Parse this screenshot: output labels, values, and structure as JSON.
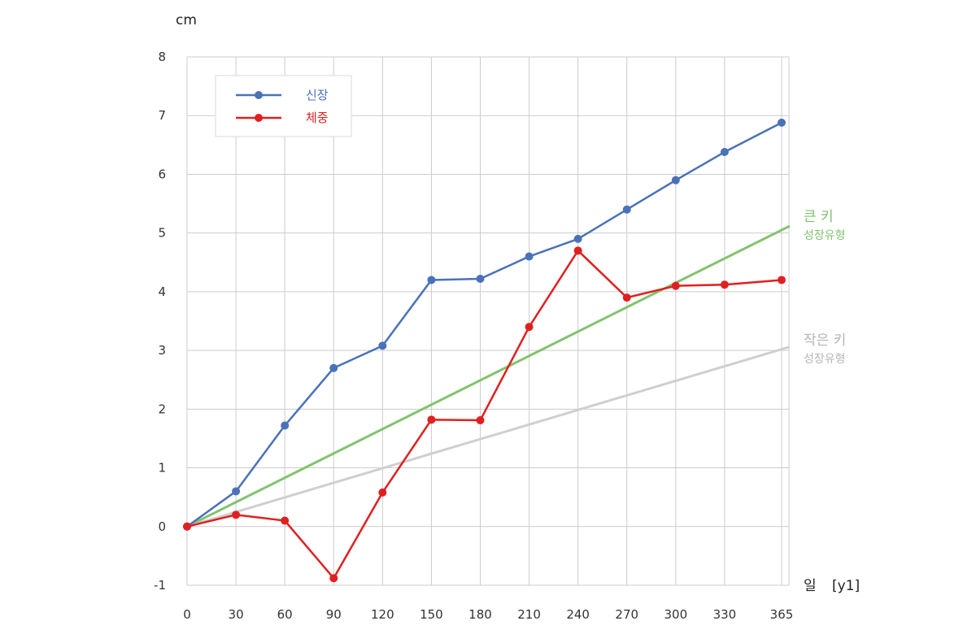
{
  "chart_data": {
    "type": "line",
    "ylabel": "cm",
    "xlabel": "일",
    "xlabel_suffix": "[y1]",
    "x": [
      0,
      30,
      60,
      90,
      120,
      150,
      180,
      210,
      240,
      270,
      300,
      330,
      365
    ],
    "xlim": [
      0,
      365
    ],
    "ylim": [
      -1,
      8
    ],
    "yticks": [
      -1,
      0,
      1,
      2,
      3,
      4,
      5,
      6,
      7,
      8
    ],
    "grid": true,
    "legend_position": "top-left",
    "series": [
      {
        "name": "신장",
        "color": "#4a72b8",
        "values": [
          0,
          0.6,
          1.72,
          2.7,
          3.08,
          4.2,
          4.22,
          4.6,
          4.9,
          5.4,
          5.9,
          6.38,
          6.88
        ]
      },
      {
        "name": "체중",
        "color": "#e02020",
        "values": [
          0,
          0.2,
          0.1,
          -0.88,
          0.58,
          1.82,
          1.81,
          3.4,
          4.7,
          3.9,
          4.1,
          4.12,
          4.2
        ]
      }
    ],
    "reference_lines": [
      {
        "label": "큰 키",
        "sublabel": "성장유형",
        "color": "#82c36e",
        "x": [
          0,
          365
        ],
        "y": [
          0,
          5.05
        ]
      },
      {
        "label": "작은 키",
        "sublabel": "성장유형",
        "color": "#cfcfcf",
        "x": [
          0,
          365
        ],
        "y": [
          0,
          3.02
        ]
      }
    ]
  }
}
